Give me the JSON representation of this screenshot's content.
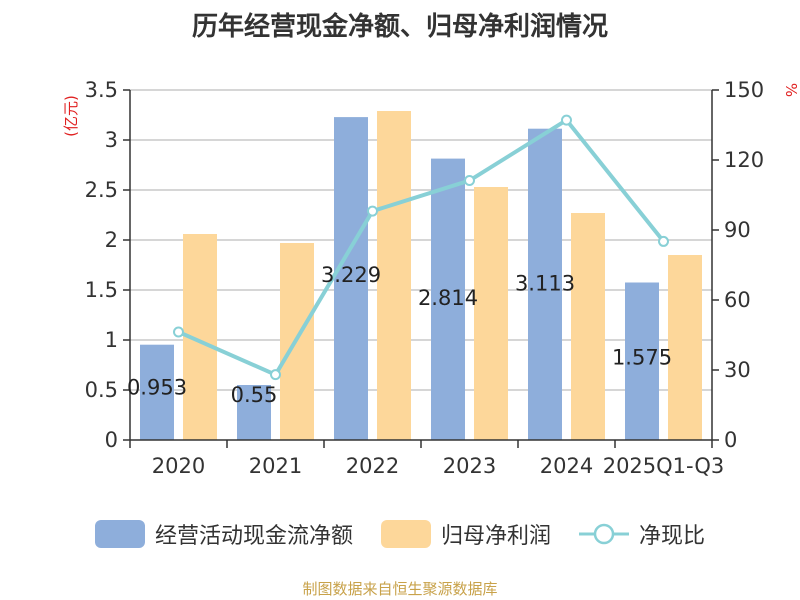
{
  "chart_data": {
    "type": "bar",
    "title": "历年经营现金净额、归母净利润情况",
    "categories": [
      "2020",
      "2021",
      "2022",
      "2023",
      "2024",
      "2025Q1-Q3"
    ],
    "series": [
      {
        "name": "经营活动现金流净额",
        "type": "bar",
        "axis": "left",
        "color": "#8eaedb",
        "values": [
          0.953,
          0.55,
          3.229,
          2.814,
          3.113,
          1.575
        ],
        "labels": [
          "0.953",
          "0.55",
          "3.229",
          "2.814",
          "3.113",
          "1.575"
        ]
      },
      {
        "name": "归母净利润",
        "type": "bar",
        "axis": "left",
        "color": "#fdd79a",
        "values": [
          2.06,
          1.97,
          3.29,
          2.53,
          2.27,
          1.85
        ]
      },
      {
        "name": "净现比",
        "type": "line",
        "axis": "right",
        "color": "#88d0d6",
        "values": [
          46.3,
          28.0,
          98.1,
          111.2,
          137.1,
          85.1
        ]
      }
    ],
    "y_left": {
      "unit": "(亿元)",
      "min": 0,
      "max": 3.5,
      "ticks": [
        0,
        0.5,
        1,
        1.5,
        2,
        2.5,
        3,
        3.5
      ],
      "tick_labels": [
        "0",
        "0.5",
        "1",
        "1.5",
        "2",
        "2.5",
        "3",
        "3.5"
      ]
    },
    "y_right": {
      "unit": "%",
      "min": 0,
      "max": 150,
      "ticks": [
        0,
        30,
        60,
        90,
        120,
        150
      ],
      "tick_labels": [
        "0",
        "30",
        "60",
        "90",
        "120",
        "150"
      ]
    },
    "grid": true,
    "legend_position": "bottom"
  },
  "source": "制图数据来自恒生聚源数据库"
}
